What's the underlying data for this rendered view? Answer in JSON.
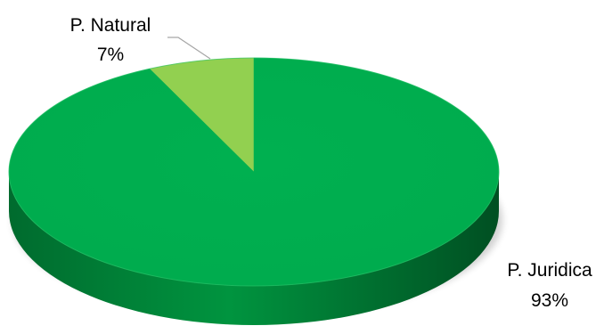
{
  "chart_data": {
    "type": "pie",
    "title": "",
    "categories": [
      "P. Natural",
      "P. Juridica"
    ],
    "values": [
      7,
      93
    ],
    "labels": [
      {
        "category": "P. Natural",
        "percent_text": "7%"
      },
      {
        "category": "P. Juridica",
        "percent_text": "93%"
      }
    ],
    "colors": [
      "#92D050",
      "#00B050"
    ],
    "style": "3d",
    "legend": "none"
  }
}
